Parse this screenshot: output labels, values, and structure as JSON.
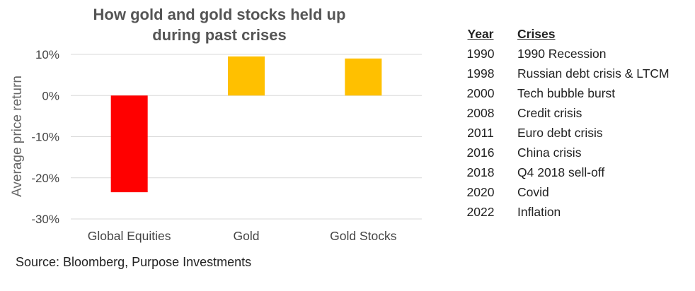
{
  "chart_data": {
    "type": "bar",
    "title": [
      "How gold and gold stocks held up",
      "during past crises"
    ],
    "ylabel": "Average price return",
    "xlabel": "",
    "categories": [
      "Global Equities",
      "Gold",
      "Gold Stocks"
    ],
    "values": [
      -23.5,
      9.5,
      9.0
    ],
    "bar_colors": [
      "#ff0000",
      "#ffc000",
      "#ffc000"
    ],
    "ylim": [
      -30,
      10
    ],
    "yticks": [
      {
        "value": 10,
        "label": "10%"
      },
      {
        "value": 0,
        "label": "0%"
      },
      {
        "value": -10,
        "label": "-10%"
      },
      {
        "value": -20,
        "label": "-20%"
      },
      {
        "value": -30,
        "label": "-30%"
      }
    ],
    "grid": true,
    "gridline_color": "#d9d9d9"
  },
  "source": "Source: Bloomberg, Purpose Investments",
  "crises_table": {
    "headers": {
      "year": "Year",
      "crisis": "Crises"
    },
    "rows": [
      {
        "year": "1990",
        "crisis": "1990 Recession"
      },
      {
        "year": "1998",
        "crisis": "Russian debt crisis & LTCM"
      },
      {
        "year": "2000",
        "crisis": "Tech bubble burst"
      },
      {
        "year": "2008",
        "crisis": "Credit crisis"
      },
      {
        "year": "2011",
        "crisis": "Euro debt crisis"
      },
      {
        "year": "2016",
        "crisis": "China crisis"
      },
      {
        "year": "2018",
        "crisis": "Q4 2018 sell-off"
      },
      {
        "year": "2020",
        "crisis": "Covid"
      },
      {
        "year": "2022",
        "crisis": "Inflation"
      }
    ]
  }
}
